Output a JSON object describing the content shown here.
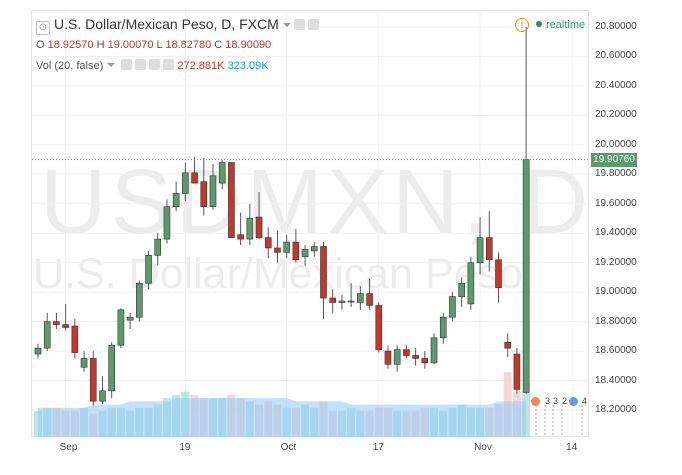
{
  "header": {
    "title": "U.S. Dollar/Mexican Peso, D, FXCM",
    "ohlc": {
      "o_label": "O",
      "o": "18.92570",
      "h_label": "H",
      "h": "19.00070",
      "l_label": "L",
      "l": "18.82780",
      "c_label": "C",
      "c": "18.90090"
    },
    "volume": {
      "label": "Vol (20, false)",
      "v1": "272.881K",
      "v2": "323.09K"
    }
  },
  "realtime_label": "realtime",
  "watermark": {
    "symbol": "USDMXN, D",
    "name": "U.S. Dollar/Mexican Peso"
  },
  "current_price": "19.90760",
  "events": [
    "3",
    "3",
    "2",
    "4"
  ],
  "colors": {
    "up": "#5c9a6d",
    "down": "#c0392b",
    "vol_up": "#b2dfdb",
    "vol_down": "#f4cccc",
    "vol_ma": "#90caf9"
  },
  "chart_data": {
    "type": "candlestick",
    "ylim": [
      18.1,
      20.9
    ],
    "y_ticks": [
      "20.80000",
      "20.60000",
      "20.40000",
      "20.20000",
      "20.00000",
      "19.80000",
      "19.60000",
      "19.40000",
      "19.20000",
      "19.00000",
      "18.80000",
      "18.60000",
      "18.40000",
      "18.20000"
    ],
    "x_ticks": [
      "Sep",
      "19",
      "Oct",
      "17",
      "Nov",
      "14"
    ],
    "candles": [
      {
        "o": 18.58,
        "h": 18.65,
        "l": 18.55,
        "c": 18.62
      },
      {
        "o": 18.62,
        "h": 18.86,
        "l": 18.6,
        "c": 18.8
      },
      {
        "o": 18.8,
        "h": 18.86,
        "l": 18.75,
        "c": 18.78
      },
      {
        "o": 18.78,
        "h": 18.92,
        "l": 18.74,
        "c": 18.76
      },
      {
        "o": 18.77,
        "h": 18.82,
        "l": 18.55,
        "c": 18.59
      },
      {
        "o": 18.49,
        "h": 18.6,
        "l": 18.46,
        "c": 18.55
      },
      {
        "o": 18.55,
        "h": 18.6,
        "l": 18.23,
        "c": 18.26
      },
      {
        "o": 18.26,
        "h": 18.43,
        "l": 18.24,
        "c": 18.33
      },
      {
        "o": 18.33,
        "h": 18.66,
        "l": 18.28,
        "c": 18.64
      },
      {
        "o": 18.64,
        "h": 18.89,
        "l": 18.62,
        "c": 18.88
      },
      {
        "o": 18.81,
        "h": 18.86,
        "l": 18.75,
        "c": 18.83
      },
      {
        "o": 18.83,
        "h": 19.08,
        "l": 18.8,
        "c": 19.06
      },
      {
        "o": 19.06,
        "h": 19.28,
        "l": 19.02,
        "c": 19.25
      },
      {
        "o": 19.25,
        "h": 19.4,
        "l": 19.18,
        "c": 19.36
      },
      {
        "o": 19.36,
        "h": 19.63,
        "l": 19.33,
        "c": 19.58
      },
      {
        "o": 19.58,
        "h": 19.75,
        "l": 19.55,
        "c": 19.67
      },
      {
        "o": 19.67,
        "h": 19.88,
        "l": 19.62,
        "c": 19.81
      },
      {
        "o": 19.81,
        "h": 19.92,
        "l": 19.74,
        "c": 19.74
      },
      {
        "o": 19.75,
        "h": 19.91,
        "l": 19.52,
        "c": 19.58
      },
      {
        "o": 19.58,
        "h": 19.87,
        "l": 19.56,
        "c": 19.79
      },
      {
        "o": 19.74,
        "h": 19.9,
        "l": 19.7,
        "c": 19.88
      },
      {
        "o": 19.88,
        "h": 19.88,
        "l": 19.37,
        "c": 19.37
      },
      {
        "o": 19.39,
        "h": 19.54,
        "l": 19.32,
        "c": 19.36
      },
      {
        "o": 19.36,
        "h": 19.6,
        "l": 19.32,
        "c": 19.5
      },
      {
        "o": 19.51,
        "h": 19.68,
        "l": 19.36,
        "c": 19.37
      },
      {
        "o": 19.37,
        "h": 19.44,
        "l": 19.23,
        "c": 19.3
      },
      {
        "o": 19.3,
        "h": 19.42,
        "l": 19.2,
        "c": 19.27
      },
      {
        "o": 19.27,
        "h": 19.39,
        "l": 19.23,
        "c": 19.34
      },
      {
        "o": 19.34,
        "h": 19.43,
        "l": 19.2,
        "c": 19.22
      },
      {
        "o": 19.24,
        "h": 19.32,
        "l": 19.18,
        "c": 19.29
      },
      {
        "o": 19.28,
        "h": 19.34,
        "l": 19.24,
        "c": 19.31
      },
      {
        "o": 19.31,
        "h": 19.34,
        "l": 18.82,
        "c": 18.96
      },
      {
        "o": 18.96,
        "h": 19.02,
        "l": 18.86,
        "c": 18.93
      },
      {
        "o": 18.93,
        "h": 18.98,
        "l": 18.88,
        "c": 18.94
      },
      {
        "o": 18.94,
        "h": 19.06,
        "l": 18.9,
        "c": 18.94
      },
      {
        "o": 18.93,
        "h": 19.04,
        "l": 18.88,
        "c": 18.99
      },
      {
        "o": 18.99,
        "h": 19.09,
        "l": 18.88,
        "c": 18.91
      },
      {
        "o": 18.91,
        "h": 18.93,
        "l": 18.59,
        "c": 18.61
      },
      {
        "o": 18.6,
        "h": 18.64,
        "l": 18.48,
        "c": 18.51
      },
      {
        "o": 18.51,
        "h": 18.64,
        "l": 18.46,
        "c": 18.61
      },
      {
        "o": 18.61,
        "h": 18.64,
        "l": 18.55,
        "c": 18.57
      },
      {
        "o": 18.57,
        "h": 18.62,
        "l": 18.5,
        "c": 18.55
      },
      {
        "o": 18.55,
        "h": 18.6,
        "l": 18.48,
        "c": 18.52
      },
      {
        "o": 18.52,
        "h": 18.72,
        "l": 18.51,
        "c": 18.69
      },
      {
        "o": 18.69,
        "h": 18.86,
        "l": 18.65,
        "c": 18.83
      },
      {
        "o": 18.83,
        "h": 19.0,
        "l": 18.8,
        "c": 18.97
      },
      {
        "o": 18.97,
        "h": 19.1,
        "l": 18.9,
        "c": 19.06
      },
      {
        "o": 18.92,
        "h": 19.24,
        "l": 18.88,
        "c": 19.2
      },
      {
        "o": 19.2,
        "h": 19.51,
        "l": 19.12,
        "c": 19.37
      },
      {
        "o": 19.37,
        "h": 19.55,
        "l": 19.14,
        "c": 19.22
      },
      {
        "o": 19.22,
        "h": 19.27,
        "l": 18.93,
        "c": 19.03
      },
      {
        "o": 18.66,
        "h": 18.72,
        "l": 18.56,
        "c": 18.62
      },
      {
        "o": 18.58,
        "h": 18.62,
        "l": 18.31,
        "c": 18.34
      },
      {
        "o": 18.32,
        "h": 20.8,
        "l": 18.31,
        "c": 19.9
      }
    ],
    "volume": [
      8,
      9,
      9,
      8,
      8,
      9,
      7,
      8,
      9,
      9,
      8,
      9,
      9,
      10,
      12,
      13,
      14,
      13,
      12,
      12,
      12,
      13,
      12,
      11,
      10,
      11,
      10,
      9,
      9,
      10,
      9,
      11,
      8,
      8,
      9,
      8,
      8,
      9,
      9,
      8,
      8,
      8,
      9,
      9,
      8,
      9,
      10,
      9,
      9,
      9,
      10,
      20,
      14,
      14
    ],
    "volume_ma": [
      9,
      9,
      9,
      9,
      9,
      9,
      10,
      10,
      10,
      10,
      11,
      11,
      11,
      11,
      11,
      12,
      12,
      12,
      12,
      12,
      12,
      12,
      12,
      12,
      12,
      12,
      12,
      12,
      11,
      11,
      11,
      11,
      11,
      11,
      10,
      10,
      10,
      10,
      10,
      10,
      10,
      10,
      10,
      10,
      10,
      10,
      10,
      10,
      10,
      10,
      11,
      11,
      11,
      11
    ]
  }
}
